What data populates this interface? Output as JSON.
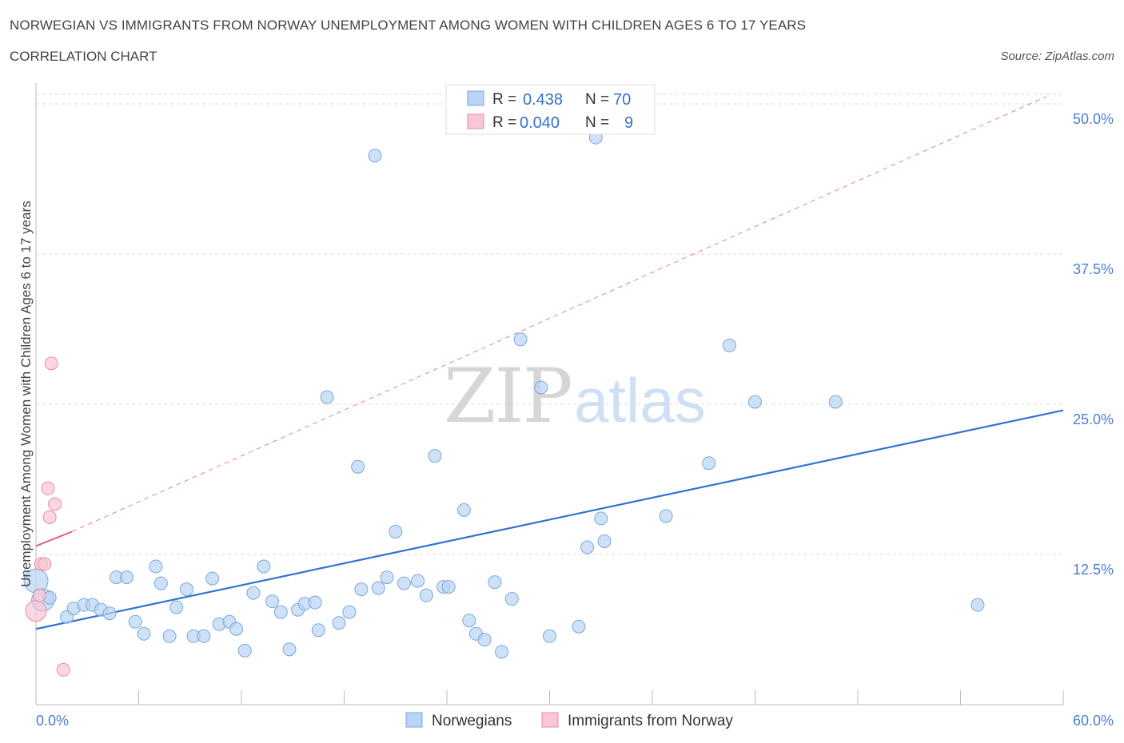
{
  "title": "NORWEGIAN VS IMMIGRANTS FROM NORWAY UNEMPLOYMENT AMONG WOMEN WITH CHILDREN AGES 6 TO 17 YEARS",
  "subtitle": "CORRELATION CHART",
  "source": "Source: ZipAtlas.com",
  "watermark": {
    "zip": "ZIP",
    "atlas": "atlas"
  },
  "colors": {
    "blue_fill": "#b9d4f4",
    "blue_stroke": "#7aa7de",
    "blue_line": "#2f74d0",
    "pink_fill": "#f8c6d4",
    "pink_stroke": "#e98aa6",
    "pink_line": "#e0608a",
    "grid": "#d9d9d9",
    "tick_text": "#4a7fd0"
  },
  "legend": {
    "rows": [
      {
        "r_label": "R =",
        "r_value": "0.438",
        "n_label": "N =",
        "n_value": "70",
        "series": "blue"
      },
      {
        "r_label": "R =",
        "r_value": "0.040",
        "n_label": "N =",
        "n_value": "9",
        "series": "pink"
      }
    ]
  },
  "bottom_legend": [
    {
      "label": "Norwegians",
      "series": "blue"
    },
    {
      "label": "Immigrants from Norway",
      "series": "pink"
    }
  ],
  "chart_data": {
    "type": "scatter",
    "title": "NORWEGIAN VS IMMIGRANTS FROM NORWAY UNEMPLOYMENT AMONG WOMEN WITH CHILDREN AGES 6 TO 17 YEARS",
    "xlabel": "",
    "ylabel": "Unemployment Among Women with Children Ages 6 to 17 years",
    "xlim": [
      0,
      60
    ],
    "ylim": [
      0,
      50.8
    ],
    "x_tick_labels": [
      "0.0%",
      "60.0%"
    ],
    "y_ticks": [
      12.5,
      25.0,
      37.5,
      50.0
    ],
    "y_tick_labels": [
      "12.5%",
      "25.0%",
      "37.5%",
      "50.0%"
    ],
    "grid": true,
    "series": [
      {
        "name": "Norwegians",
        "color": "blue",
        "points": [
          [
            0.0,
            10.3
          ],
          [
            0.4,
            8.7
          ],
          [
            0.8,
            8.9
          ],
          [
            1.8,
            7.3
          ],
          [
            2.2,
            8.0
          ],
          [
            2.8,
            8.3
          ],
          [
            3.3,
            8.3
          ],
          [
            3.8,
            7.9
          ],
          [
            4.3,
            7.6
          ],
          [
            4.7,
            10.6
          ],
          [
            5.3,
            10.6
          ],
          [
            5.8,
            6.9
          ],
          [
            6.3,
            5.9
          ],
          [
            7.0,
            11.5
          ],
          [
            7.3,
            10.1
          ],
          [
            7.8,
            5.7
          ],
          [
            8.2,
            8.1
          ],
          [
            8.8,
            9.6
          ],
          [
            9.2,
            5.7
          ],
          [
            9.8,
            5.7
          ],
          [
            10.3,
            10.5
          ],
          [
            10.7,
            6.7
          ],
          [
            11.3,
            6.9
          ],
          [
            11.7,
            6.3
          ],
          [
            12.2,
            4.5
          ],
          [
            12.7,
            9.3
          ],
          [
            13.3,
            11.5
          ],
          [
            13.8,
            8.6
          ],
          [
            14.3,
            7.7
          ],
          [
            14.8,
            4.6
          ],
          [
            15.3,
            7.9
          ],
          [
            15.7,
            8.4
          ],
          [
            16.3,
            8.5
          ],
          [
            16.5,
            6.2
          ],
          [
            17.0,
            25.6
          ],
          [
            17.7,
            6.8
          ],
          [
            18.3,
            7.7
          ],
          [
            18.8,
            19.8
          ],
          [
            19.0,
            9.6
          ],
          [
            19.8,
            45.7
          ],
          [
            20.0,
            9.7
          ],
          [
            20.5,
            10.6
          ],
          [
            21.0,
            14.4
          ],
          [
            21.5,
            10.1
          ],
          [
            22.3,
            10.3
          ],
          [
            22.8,
            9.1
          ],
          [
            23.3,
            20.7
          ],
          [
            23.8,
            9.8
          ],
          [
            24.1,
            9.8
          ],
          [
            25.0,
            16.2
          ],
          [
            25.3,
            7.0
          ],
          [
            25.7,
            5.9
          ],
          [
            26.2,
            5.4
          ],
          [
            26.8,
            10.2
          ],
          [
            27.2,
            4.4
          ],
          [
            27.8,
            8.8
          ],
          [
            28.3,
            30.4
          ],
          [
            29.5,
            26.4
          ],
          [
            30.0,
            5.7
          ],
          [
            31.7,
            6.5
          ],
          [
            32.2,
            13.1
          ],
          [
            32.7,
            47.2
          ],
          [
            33.0,
            15.5
          ],
          [
            33.2,
            13.6
          ],
          [
            36.8,
            15.7
          ],
          [
            39.3,
            20.1
          ],
          [
            40.5,
            29.9
          ],
          [
            42.0,
            25.2
          ],
          [
            46.7,
            25.2
          ],
          [
            55.0,
            8.3
          ]
        ],
        "trend": {
          "x0": 0,
          "y0": 6.3,
          "x1": 60,
          "y1": 24.5
        }
      },
      {
        "name": "Immigrants from Norway",
        "color": "pink",
        "points": [
          [
            0.0,
            7.8
          ],
          [
            0.2,
            9.1
          ],
          [
            0.3,
            11.7
          ],
          [
            0.5,
            11.7
          ],
          [
            0.7,
            18.0
          ],
          [
            0.8,
            15.6
          ],
          [
            0.9,
            28.4
          ],
          [
            1.1,
            16.7
          ],
          [
            1.6,
            2.9
          ]
        ],
        "trend": {
          "x0": 0,
          "y0": 13.2,
          "x1": 2.1,
          "y1": 14.4
        },
        "trend_extended": {
          "x0": 2.1,
          "y0": 14.4,
          "x1": 59.0,
          "y1": 50.6
        }
      }
    ]
  }
}
